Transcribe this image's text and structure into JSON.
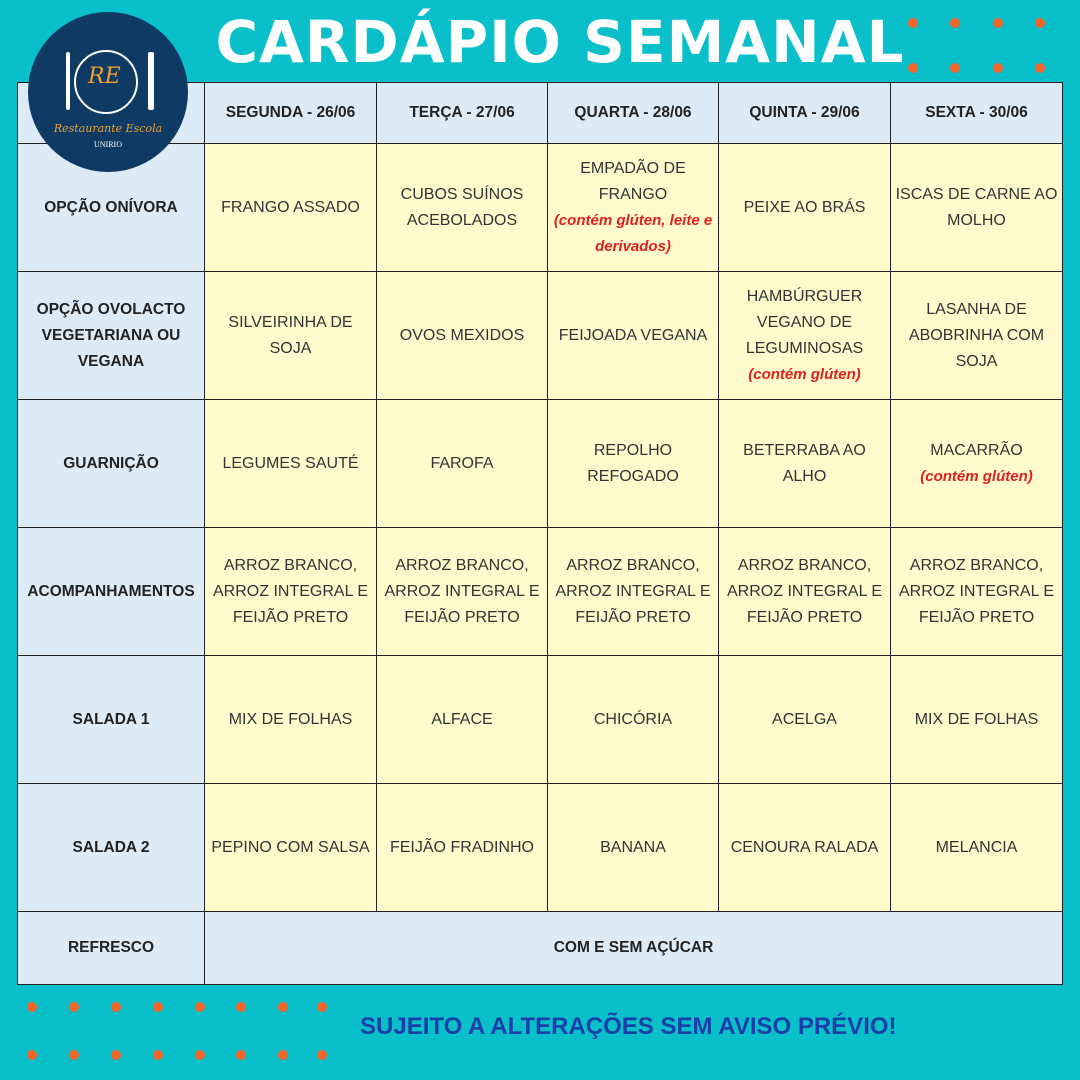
{
  "title": "CARDÁPIO SEMANAL",
  "logo": {
    "initials": "RE",
    "name": "Restaurante Escola",
    "institution": "UNIRIO"
  },
  "colors": {
    "background": "#08bfca",
    "dots": "#f2652b",
    "header_cell": "#ddebf7",
    "data_cell": "#fffbcc",
    "allergen_note": "#e02020",
    "footer": "#1a3fa8"
  },
  "days": [
    "SEGUNDA - 26/06",
    "TERÇA - 27/06",
    "QUARTA - 28/06",
    "QUINTA - 29/06",
    "SEXTA - 30/06"
  ],
  "rows": [
    {
      "label": "OPÇÃO ONÍVORA",
      "cells": [
        {
          "text": "FRANGO ASSADO"
        },
        {
          "text": "CUBOS SUÍNOS ACEBOLADOS"
        },
        {
          "text": "EMPADÃO DE FRANGO",
          "note": "(contém glúten, leite e derivados)"
        },
        {
          "text": "PEIXE AO BRÁS"
        },
        {
          "text": "ISCAS DE CARNE AO MOLHO"
        }
      ]
    },
    {
      "label": "OPÇÃO OVOLACTO VEGETARIANA OU VEGANA",
      "cells": [
        {
          "text": "SILVEIRINHA DE SOJA"
        },
        {
          "text": "OVOS MEXIDOS"
        },
        {
          "text": "FEIJOADA VEGANA"
        },
        {
          "text": "HAMBÚRGUER VEGANO DE LEGUMINOSAS",
          "note": "(contém glúten)"
        },
        {
          "text": "LASANHA DE ABOBRINHA COM SOJA"
        }
      ]
    },
    {
      "label": "GUARNIÇÃO",
      "cells": [
        {
          "text": "LEGUMES SAUTÉ"
        },
        {
          "text": "FAROFA"
        },
        {
          "text": "REPOLHO REFOGADO"
        },
        {
          "text": "BETERRABA AO ALHO"
        },
        {
          "text": "MACARRÃO",
          "note": "(contém glúten)"
        }
      ]
    },
    {
      "label": "ACOMPANHAMENTOS",
      "cells": [
        {
          "text": "ARROZ BRANCO, ARROZ INTEGRAL E FEIJÃO PRETO"
        },
        {
          "text": "ARROZ BRANCO, ARROZ INTEGRAL E FEIJÃO PRETO"
        },
        {
          "text": "ARROZ BRANCO, ARROZ INTEGRAL E FEIJÃO PRETO"
        },
        {
          "text": "ARROZ BRANCO, ARROZ INTEGRAL E FEIJÃO PRETO"
        },
        {
          "text": "ARROZ BRANCO, ARROZ INTEGRAL E FEIJÃO PRETO"
        }
      ]
    },
    {
      "label": "SALADA 1",
      "cells": [
        {
          "text": "MIX DE FOLHAS"
        },
        {
          "text": "ALFACE"
        },
        {
          "text": "CHICÓRIA"
        },
        {
          "text": "ACELGA"
        },
        {
          "text": "MIX DE FOLHAS"
        }
      ]
    },
    {
      "label": "SALADA 2",
      "cells": [
        {
          "text": "PEPINO COM SALSA"
        },
        {
          "text": "FEIJÃO FRADINHO"
        },
        {
          "text": "BANANA"
        },
        {
          "text": "CENOURA RALADA"
        },
        {
          "text": "MELANCIA"
        }
      ]
    }
  ],
  "refresco": {
    "label": "REFRESCO",
    "text": "COM E SEM AÇÚCAR"
  },
  "footer": "SUJEITO A ALTERAÇÕES SEM AVISO PRÉVIO!"
}
